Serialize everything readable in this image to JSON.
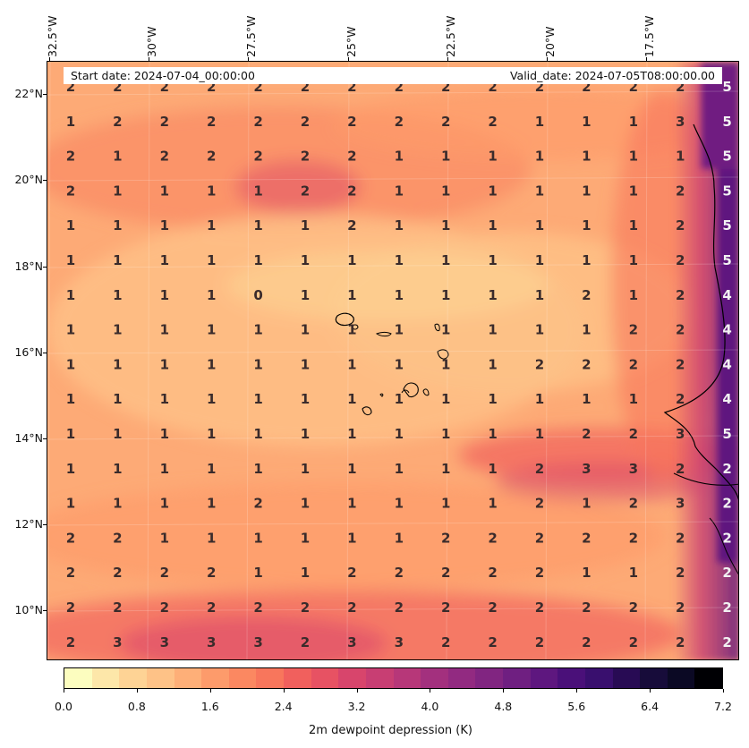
{
  "header": {
    "start_date": "Start date: 2024-07-04_00:00:00",
    "valid_date": "Valid_date: 2024-07-05T08:00:00.00"
  },
  "axes": {
    "lon_labels": [
      "32.5°W",
      "30°W",
      "27.5°W",
      "25°W",
      "22.5°W",
      "20°W",
      "17.5°W"
    ],
    "lat_labels": [
      "22°N",
      "20°N",
      "18°N",
      "16°N",
      "14°N",
      "12°N",
      "10°N"
    ]
  },
  "colorbar": {
    "label": "2m dewpoint depression (K)",
    "ticks": [
      "0.0",
      "0.8",
      "1.6",
      "2.4",
      "3.2",
      "4.0",
      "4.8",
      "5.6",
      "6.4",
      "7.2"
    ],
    "colors": [
      "#fcfdbf",
      "#fde7a9",
      "#fed395",
      "#fec287",
      "#feaf78",
      "#fd9b6b",
      "#fb8861",
      "#f8765c",
      "#f1605d",
      "#e75263",
      "#d8456c",
      "#c83e73",
      "#b73779",
      "#a3307e",
      "#922a81",
      "#812581",
      "#6f1f81",
      "#5e177f",
      "#4a1079",
      "#390f6e",
      "#280b54",
      "#170c3a",
      "#0b0924",
      "#000004"
    ]
  },
  "grid_values": [
    [
      "2",
      "2",
      "2",
      "2",
      "2",
      "2",
      "2",
      "2",
      "2",
      "2",
      "2",
      "2",
      "2",
      "2",
      "5"
    ],
    [
      "1",
      "2",
      "2",
      "2",
      "2",
      "2",
      "2",
      "2",
      "2",
      "2",
      "1",
      "1",
      "1",
      "3",
      "5"
    ],
    [
      "2",
      "1",
      "2",
      "2",
      "2",
      "2",
      "2",
      "1",
      "1",
      "1",
      "1",
      "1",
      "1",
      "1",
      "5"
    ],
    [
      "2",
      "1",
      "1",
      "1",
      "1",
      "2",
      "2",
      "1",
      "1",
      "1",
      "1",
      "1",
      "1",
      "2",
      "5"
    ],
    [
      "1",
      "1",
      "1",
      "1",
      "1",
      "1",
      "2",
      "1",
      "1",
      "1",
      "1",
      "1",
      "1",
      "2",
      "5"
    ],
    [
      "1",
      "1",
      "1",
      "1",
      "1",
      "1",
      "1",
      "1",
      "1",
      "1",
      "1",
      "1",
      "1",
      "2",
      "5"
    ],
    [
      "1",
      "1",
      "1",
      "1",
      "0",
      "1",
      "1",
      "1",
      "1",
      "1",
      "1",
      "2",
      "1",
      "2",
      "4"
    ],
    [
      "1",
      "1",
      "1",
      "1",
      "1",
      "1",
      "1",
      "1",
      "1",
      "1",
      "1",
      "1",
      "2",
      "2",
      "4"
    ],
    [
      "1",
      "1",
      "1",
      "1",
      "1",
      "1",
      "1",
      "1",
      "1",
      "1",
      "2",
      "2",
      "2",
      "2",
      "4"
    ],
    [
      "1",
      "1",
      "1",
      "1",
      "1",
      "1",
      "1",
      "1",
      "1",
      "1",
      "1",
      "1",
      "1",
      "2",
      "4"
    ],
    [
      "1",
      "1",
      "1",
      "1",
      "1",
      "1",
      "1",
      "1",
      "1",
      "1",
      "1",
      "2",
      "2",
      "3",
      "5"
    ],
    [
      "1",
      "1",
      "1",
      "1",
      "1",
      "1",
      "1",
      "1",
      "1",
      "1",
      "2",
      "3",
      "3",
      "2",
      "2"
    ],
    [
      "1",
      "1",
      "1",
      "1",
      "2",
      "1",
      "1",
      "1",
      "1",
      "1",
      "2",
      "1",
      "2",
      "3",
      "2"
    ],
    [
      "2",
      "2",
      "1",
      "1",
      "1",
      "1",
      "1",
      "1",
      "2",
      "2",
      "2",
      "2",
      "2",
      "2",
      "2"
    ],
    [
      "2",
      "2",
      "2",
      "2",
      "1",
      "1",
      "2",
      "2",
      "2",
      "2",
      "2",
      "1",
      "1",
      "2",
      "2"
    ],
    [
      "2",
      "2",
      "2",
      "2",
      "2",
      "2",
      "2",
      "2",
      "2",
      "2",
      "2",
      "2",
      "2",
      "2",
      "2"
    ],
    [
      "2",
      "3",
      "3",
      "3",
      "3",
      "2",
      "3",
      "3",
      "2",
      "2",
      "2",
      "2",
      "2",
      "2",
      "2"
    ]
  ]
}
